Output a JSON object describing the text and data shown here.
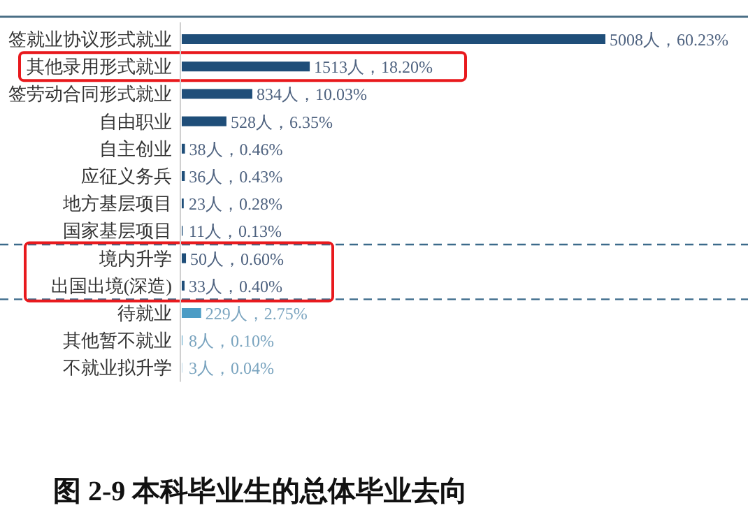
{
  "chart_data": {
    "type": "bar",
    "orientation": "horizontal",
    "title": "图 2-9 本科毕业生的总体毕业去向",
    "categories": [
      "签就业协议形式就业",
      "其他录用形式就业",
      "签劳动合同形式就业",
      "自由职业",
      "自主创业",
      "应征义务兵",
      "地方基层项目",
      "国家基层项目",
      "境内升学",
      "出国出境(深造)",
      "待就业",
      "其他暂不就业",
      "不就业拟升学"
    ],
    "values": [
      5008,
      1513,
      834,
      528,
      38,
      36,
      23,
      11,
      50,
      33,
      229,
      8,
      3
    ],
    "value_labels": [
      "5008人，60.23%",
      "1513人，18.20%",
      "834人，10.03%",
      "528人，6.35%",
      "38人，0.46%",
      "36人，0.43%",
      "23人，0.28%",
      "11人，0.13%",
      "50人，0.60%",
      "33人，0.40%",
      "229人，2.75%",
      "8人，0.10%",
      "3人，0.04%"
    ],
    "colors": [
      "#1f4e79",
      "#1f4e79",
      "#1f4e79",
      "#1f4e79",
      "#1f4e79",
      "#1f4e79",
      "#1f4e79",
      "#1f4e79",
      "#1f4e79",
      "#1f4e79",
      "#4b9cc5",
      "#4b9cc5",
      "#4b9cc5"
    ]
  }
}
